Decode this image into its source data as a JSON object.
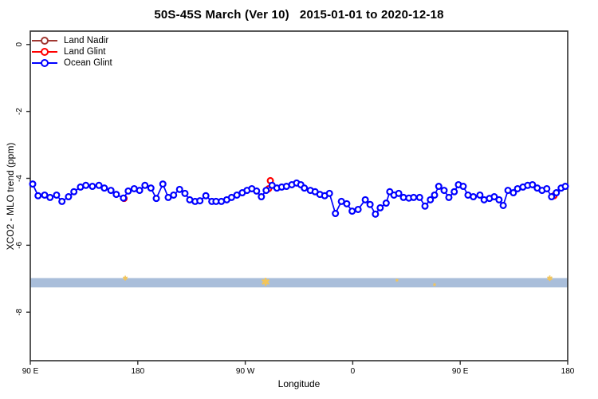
{
  "page": {
    "background": "#ffffff",
    "box_color": "#2f2f2f"
  },
  "chart_data": {
    "type": "line",
    "title": "50S-45S March (Ver 10)   2015-01-01 to 2020-12-18",
    "xlabel": "Longitude",
    "ylabel": "XCO2 - MLO trend (ppm)",
    "legend_position": "top-left",
    "grid": false,
    "x_axis": {
      "range": [
        90,
        540
      ],
      "ticks": [
        90,
        180,
        270,
        360,
        450,
        540
      ],
      "tick_labels": [
        "90 E",
        "180",
        "90 W",
        "0",
        "90 E",
        "180"
      ]
    },
    "y_axis": {
      "range": [
        0.4,
        -9.45
      ],
      "ticks": [
        0,
        -2,
        -4,
        -6,
        -8
      ],
      "tick_labels": [
        "0",
        "-2",
        "-4",
        "-6",
        "-8"
      ]
    },
    "band": {
      "label": "highlight-band",
      "y_top": -6.98,
      "y_bottom": -7.26,
      "color": "#A9BEDA"
    },
    "band_markers": {
      "color": "#F3C559",
      "glyph": "✱",
      "points": [
        {
          "lon": 169.5,
          "val": -6.99,
          "size": 8
        },
        {
          "lon": 287.0,
          "val": -7.1,
          "size": 13
        },
        {
          "lon": 397.0,
          "val": -7.06,
          "size": 5
        },
        {
          "lon": 428.5,
          "val": -7.2,
          "size": 5
        },
        {
          "lon": 525.0,
          "val": -6.99,
          "size": 9
        }
      ]
    },
    "series": [
      {
        "name": "Land Nadir",
        "color": "#A13832",
        "marker": "open-circle",
        "points": []
      },
      {
        "name": "Land Glint",
        "color": "#FF0000",
        "marker": "open-circle",
        "points": [
          [
            168.5,
            -4.6
          ],
          [
            289.6,
            -4.31
          ],
          [
            291.0,
            -4.07
          ],
          [
            528.5,
            -4.52
          ]
        ]
      },
      {
        "name": "Ocean Glint",
        "color": "#0000FF",
        "marker": "open-circle",
        "points": [
          [
            92,
            -4.17
          ],
          [
            96.5,
            -4.52
          ],
          [
            102,
            -4.5
          ],
          [
            106.5,
            -4.57
          ],
          [
            112,
            -4.5
          ],
          [
            116.5,
            -4.69
          ],
          [
            122,
            -4.55
          ],
          [
            126.5,
            -4.4
          ],
          [
            132,
            -4.26
          ],
          [
            136.5,
            -4.21
          ],
          [
            142,
            -4.24
          ],
          [
            147.5,
            -4.21
          ],
          [
            152,
            -4.29
          ],
          [
            157.5,
            -4.36
          ],
          [
            162,
            -4.48
          ],
          [
            168,
            -4.59
          ],
          [
            172,
            -4.38
          ],
          [
            177,
            -4.31
          ],
          [
            181.5,
            -4.36
          ],
          [
            186,
            -4.21
          ],
          [
            191,
            -4.29
          ],
          [
            195.5,
            -4.6
          ],
          [
            201,
            -4.17
          ],
          [
            205.5,
            -4.57
          ],
          [
            210,
            -4.5
          ],
          [
            215,
            -4.33
          ],
          [
            219.5,
            -4.45
          ],
          [
            223.5,
            -4.64
          ],
          [
            228,
            -4.69
          ],
          [
            232,
            -4.67
          ],
          [
            237,
            -4.52
          ],
          [
            242,
            -4.69
          ],
          [
            245.5,
            -4.69
          ],
          [
            250,
            -4.69
          ],
          [
            254.5,
            -4.64
          ],
          [
            258.5,
            -4.57
          ],
          [
            263,
            -4.5
          ],
          [
            267.5,
            -4.43
          ],
          [
            271.5,
            -4.36
          ],
          [
            275.5,
            -4.31
          ],
          [
            279.5,
            -4.38
          ],
          [
            283.5,
            -4.55
          ],
          [
            287.5,
            -4.36
          ],
          [
            292.5,
            -4.21
          ],
          [
            296.5,
            -4.29
          ],
          [
            300.5,
            -4.26
          ],
          [
            304.5,
            -4.24
          ],
          [
            309,
            -4.19
          ],
          [
            313,
            -4.14
          ],
          [
            316.5,
            -4.19
          ],
          [
            319.5,
            -4.29
          ],
          [
            324.5,
            -4.36
          ],
          [
            328.5,
            -4.4
          ],
          [
            332.5,
            -4.48
          ],
          [
            336.5,
            -4.52
          ],
          [
            340.5,
            -4.45
          ],
          [
            345.5,
            -5.05
          ],
          [
            350.5,
            -4.69
          ],
          [
            355,
            -4.76
          ],
          [
            359.5,
            -4.98
          ],
          [
            364.5,
            -4.93
          ],
          [
            370.5,
            -4.64
          ],
          [
            374.5,
            -4.78
          ],
          [
            379,
            -5.07
          ],
          [
            383,
            -4.88
          ],
          [
            388,
            -4.74
          ],
          [
            391,
            -4.4
          ],
          [
            394.5,
            -4.5
          ],
          [
            398.5,
            -4.45
          ],
          [
            402.5,
            -4.57
          ],
          [
            407,
            -4.59
          ],
          [
            411,
            -4.57
          ],
          [
            416,
            -4.57
          ],
          [
            420.5,
            -4.83
          ],
          [
            425,
            -4.64
          ],
          [
            428.5,
            -4.5
          ],
          [
            432,
            -4.24
          ],
          [
            436.5,
            -4.36
          ],
          [
            440.5,
            -4.57
          ],
          [
            445,
            -4.4
          ],
          [
            448.5,
            -4.19
          ],
          [
            452.5,
            -4.24
          ],
          [
            456.5,
            -4.5
          ],
          [
            461,
            -4.55
          ],
          [
            466.5,
            -4.5
          ],
          [
            470,
            -4.64
          ],
          [
            474.5,
            -4.6
          ],
          [
            478.5,
            -4.55
          ],
          [
            482.5,
            -4.64
          ],
          [
            486,
            -4.81
          ],
          [
            490,
            -4.36
          ],
          [
            494.5,
            -4.43
          ],
          [
            498,
            -4.31
          ],
          [
            502.5,
            -4.26
          ],
          [
            506.5,
            -4.21
          ],
          [
            510.5,
            -4.19
          ],
          [
            514.5,
            -4.29
          ],
          [
            518.5,
            -4.36
          ],
          [
            522.5,
            -4.31
          ],
          [
            526.5,
            -4.55
          ],
          [
            530.5,
            -4.43
          ],
          [
            534.5,
            -4.29
          ],
          [
            538,
            -4.24
          ]
        ]
      }
    ]
  }
}
